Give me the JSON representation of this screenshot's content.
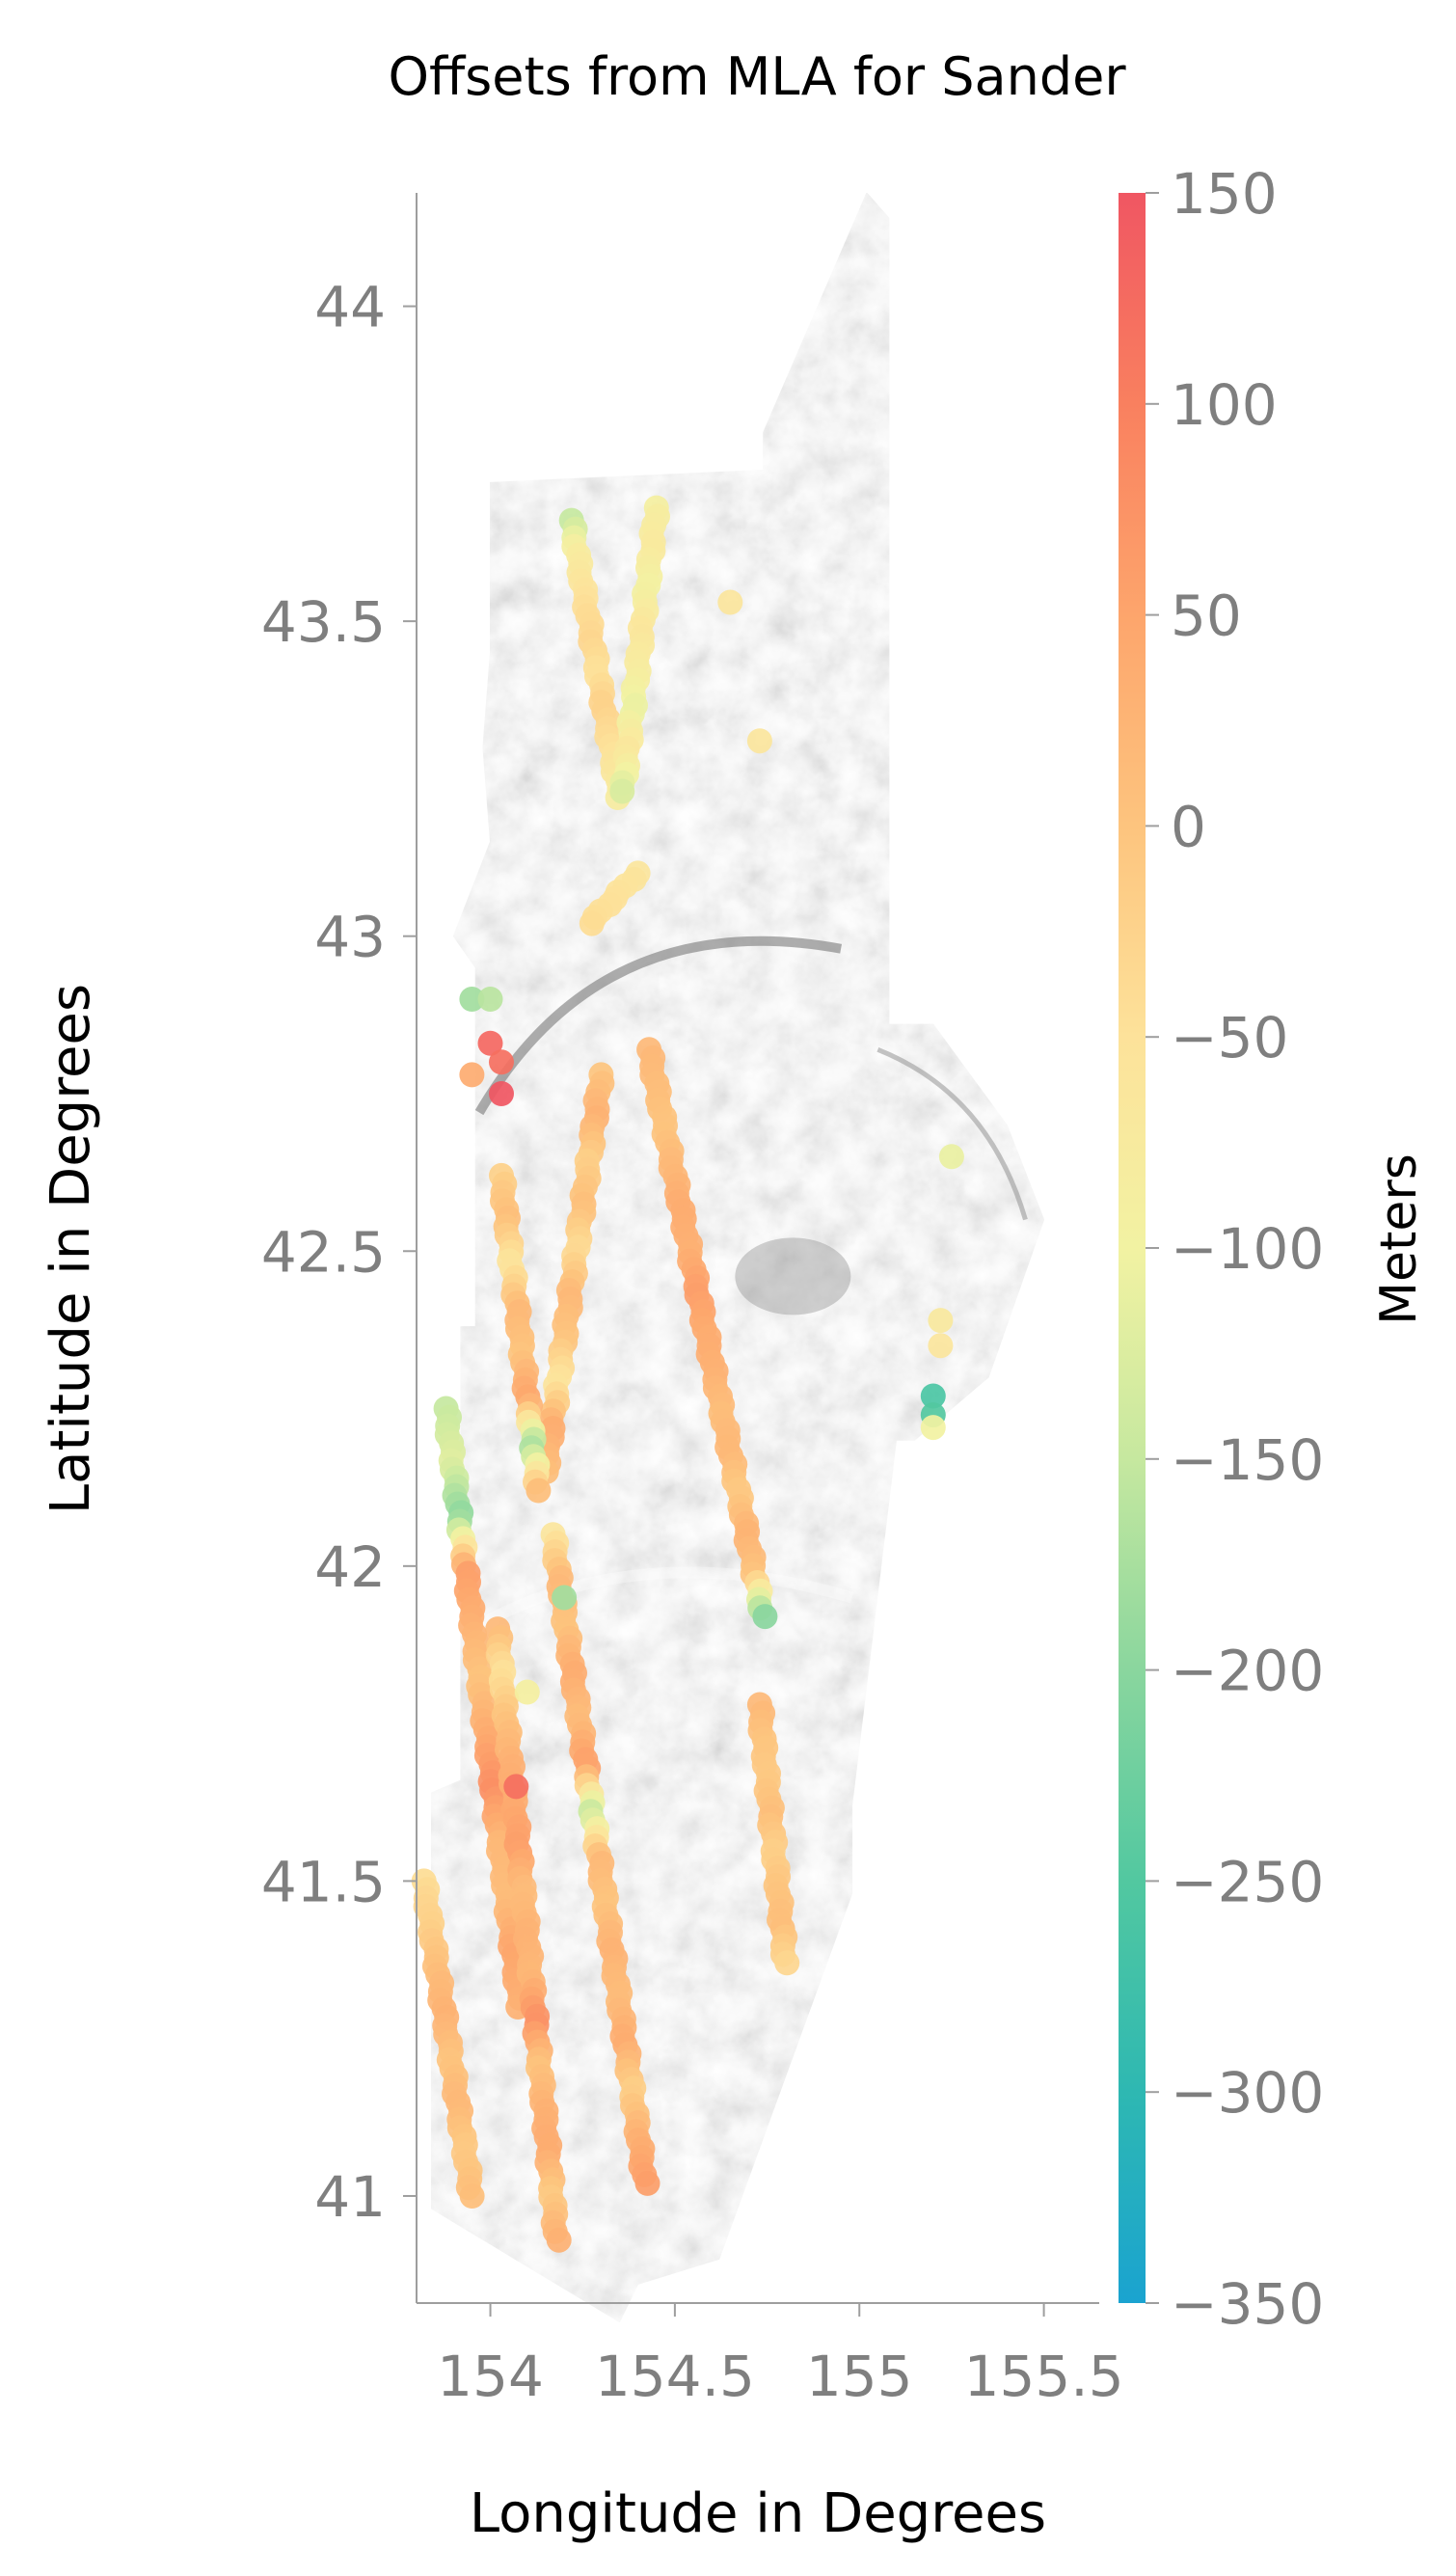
{
  "chart_data": {
    "type": "scatter",
    "title": "Offsets from MLA for Sander",
    "xlabel": "Longitude in Degrees",
    "ylabel": "Latitude in Degrees",
    "xlim": [
      153.8,
      155.65
    ],
    "ylim": [
      40.83,
      44.18
    ],
    "x_ticks": [
      154,
      154.5,
      155,
      155.5
    ],
    "x_tick_labels": [
      "154",
      "154.5",
      "155",
      "155.5"
    ],
    "y_ticks": [
      41,
      41.5,
      42,
      42.5,
      43,
      43.5,
      44
    ],
    "y_tick_labels": [
      "41",
      "41.5",
      "42",
      "42.5",
      "43",
      "43.5",
      "44"
    ],
    "grid": false,
    "background": "gray shaded-relief terrain image of the mapped region",
    "colorbar": {
      "label": "Meters",
      "min": -350,
      "max": 150,
      "ticks": [
        150,
        100,
        50,
        0,
        -50,
        -100,
        -150,
        -200,
        -250,
        -300,
        -350
      ],
      "tick_labels": [
        "150",
        "100",
        "50",
        "0",
        "−50",
        "−100",
        "−150",
        "−200",
        "−250",
        "−300",
        "−350"
      ],
      "colormap": [
        {
          "value": -350,
          "color": "#1aa3d0"
        },
        {
          "value": -300,
          "color": "#2eb8b2"
        },
        {
          "value": -250,
          "color": "#52c8a0"
        },
        {
          "value": -200,
          "color": "#8ad69e"
        },
        {
          "value": -150,
          "color": "#c6e89f"
        },
        {
          "value": -100,
          "color": "#f2f2a2"
        },
        {
          "value": -50,
          "color": "#fde29a"
        },
        {
          "value": 0,
          "color": "#fdc47e"
        },
        {
          "value": 50,
          "color": "#fda56c"
        },
        {
          "value": 100,
          "color": "#f9805f"
        },
        {
          "value": 150,
          "color": "#f05662"
        }
      ]
    },
    "tracks": [
      {
        "start": [
          154.22,
          43.66
        ],
        "end": [
          154.35,
          43.22
        ],
        "values": [
          -150,
          -80,
          -60,
          -40,
          -30,
          -50,
          -20,
          -40,
          -60,
          -80
        ]
      },
      {
        "start": [
          154.45,
          43.68
        ],
        "end": [
          154.36,
          43.23
        ],
        "values": [
          -90,
          -70,
          -100,
          -60,
          -80,
          -110,
          -60,
          -130
        ]
      },
      {
        "start": [
          154.4,
          43.1
        ],
        "end": [
          154.27,
          43.02
        ],
        "values": [
          -60,
          -40
        ]
      },
      {
        "start": [
          154.43,
          42.82
        ],
        "end": [
          154.74,
          41.92
        ],
        "values": [
          20,
          10,
          0,
          20,
          40,
          30,
          60,
          40,
          30,
          10,
          20,
          -10,
          30,
          0,
          -200
        ]
      },
      {
        "start": [
          154.73,
          41.78
        ],
        "end": [
          154.8,
          41.37
        ],
        "values": [
          20,
          0,
          -10,
          10,
          -20,
          0,
          10,
          -30
        ]
      },
      {
        "start": [
          154.3,
          42.78
        ],
        "end": [
          154.15,
          42.15
        ],
        "values": [
          0,
          30,
          -20,
          10,
          -40,
          20,
          0,
          -60,
          40,
          10
        ]
      },
      {
        "start": [
          154.03,
          42.62
        ],
        "end": [
          154.13,
          42.12
        ],
        "values": [
          -20,
          10,
          -60,
          20,
          0,
          50,
          -180,
          10
        ]
      },
      {
        "start": [
          154.17,
          42.05
        ],
        "end": [
          154.42,
          41.02
        ],
        "values": [
          -60,
          20,
          0,
          40,
          10,
          60,
          -150,
          20,
          0,
          30,
          10,
          40,
          -20,
          30,
          60
        ]
      },
      {
        "start": [
          153.88,
          42.25
        ],
        "end": [
          154.08,
          41.3
        ],
        "values": [
          -150,
          -120,
          -200,
          60,
          30,
          0,
          40,
          80,
          20,
          10,
          50,
          30
        ]
      },
      {
        "start": [
          154.02,
          41.9
        ],
        "end": [
          154.18,
          40.93
        ],
        "values": [
          20,
          -50,
          0,
          30,
          40,
          60,
          10,
          30,
          20,
          80,
          0,
          30,
          40,
          -10,
          30
        ]
      },
      {
        "start": [
          153.82,
          41.5
        ],
        "end": [
          153.95,
          41.0
        ],
        "values": [
          -40,
          -20,
          10,
          30,
          0,
          20,
          -10,
          10
        ]
      }
    ],
    "points": [
      {
        "x": 154.65,
        "y": 43.53,
        "v": -60
      },
      {
        "x": 154.73,
        "y": 43.31,
        "v": -60
      },
      {
        "x": 153.95,
        "y": 42.9,
        "v": -180
      },
      {
        "x": 154.0,
        "y": 42.9,
        "v": -160
      },
      {
        "x": 154.0,
        "y": 42.83,
        "v": 130
      },
      {
        "x": 154.03,
        "y": 42.8,
        "v": 120
      },
      {
        "x": 154.03,
        "y": 42.75,
        "v": 150
      },
      {
        "x": 153.95,
        "y": 42.78,
        "v": 40
      },
      {
        "x": 155.25,
        "y": 42.65,
        "v": -110
      },
      {
        "x": 155.22,
        "y": 42.39,
        "v": -70
      },
      {
        "x": 155.22,
        "y": 42.35,
        "v": -60
      },
      {
        "x": 155.2,
        "y": 42.27,
        "v": -260
      },
      {
        "x": 155.2,
        "y": 42.24,
        "v": -250
      },
      {
        "x": 155.2,
        "y": 42.22,
        "v": -100
      },
      {
        "x": 154.07,
        "y": 41.65,
        "v": 120
      },
      {
        "x": 154.1,
        "y": 41.8,
        "v": -90
      },
      {
        "x": 154.2,
        "y": 41.95,
        "v": -180
      }
    ]
  }
}
